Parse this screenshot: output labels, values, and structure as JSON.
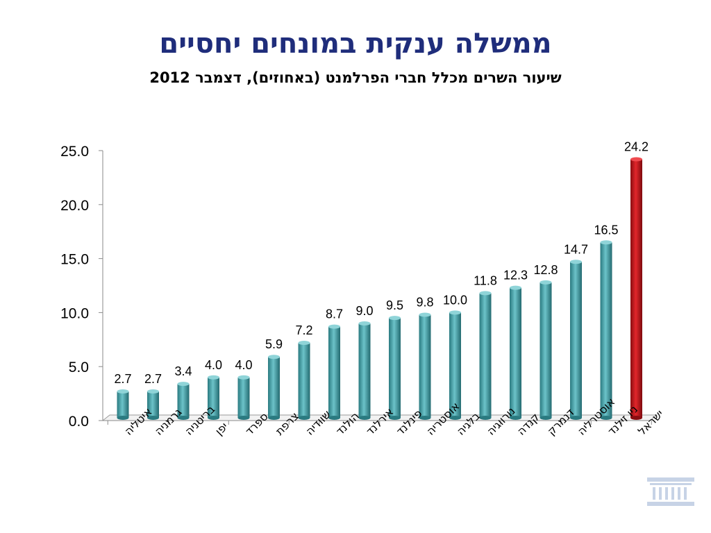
{
  "title": "ממשלה ענקית במונחים יחסיים",
  "subtitle": "שיעור השרים מכלל חברי הפרלמנט (באחוזים), דצמבר 2012",
  "colors": {
    "title": "#1f2d7b",
    "bar": "#3b9aa1",
    "highlight": "#c0141a"
  },
  "logo_icon": "knesset-building-icon",
  "chart_data": {
    "type": "bar",
    "title": "",
    "xlabel": "",
    "ylabel": "",
    "ylim": [
      0,
      25
    ],
    "yticks": [
      "0.0",
      "5.0",
      "10.0",
      "15.0",
      "20.0",
      "25.0"
    ],
    "grid": false,
    "categories": [
      "איטליה",
      "גרמניה",
      "בריטניה",
      "יפן",
      "ספרד",
      "צרפת",
      "שוודיה",
      "הולנד",
      "אירלנד",
      "פינלנד",
      "אוסטריה",
      "בלגיה",
      "נורווגיה",
      "קנדה",
      "דנמרק",
      "אוסטרליה",
      "ניו זילנד",
      "ישראל"
    ],
    "values": [
      2.7,
      2.7,
      3.4,
      4.0,
      4.0,
      5.9,
      7.2,
      8.7,
      9.0,
      9.5,
      9.8,
      10.0,
      11.8,
      12.3,
      12.8,
      14.7,
      16.5,
      24.2
    ],
    "data_labels": [
      "2.7",
      "2.7",
      "3.4",
      "4.0",
      "4.0",
      "5.9",
      "7.2",
      "8.7",
      "9.0",
      "9.5",
      "9.8",
      "10.0",
      "11.8",
      "12.3",
      "12.8",
      "14.7",
      "16.5",
      "24.2"
    ],
    "highlight_category": "ישראל"
  }
}
